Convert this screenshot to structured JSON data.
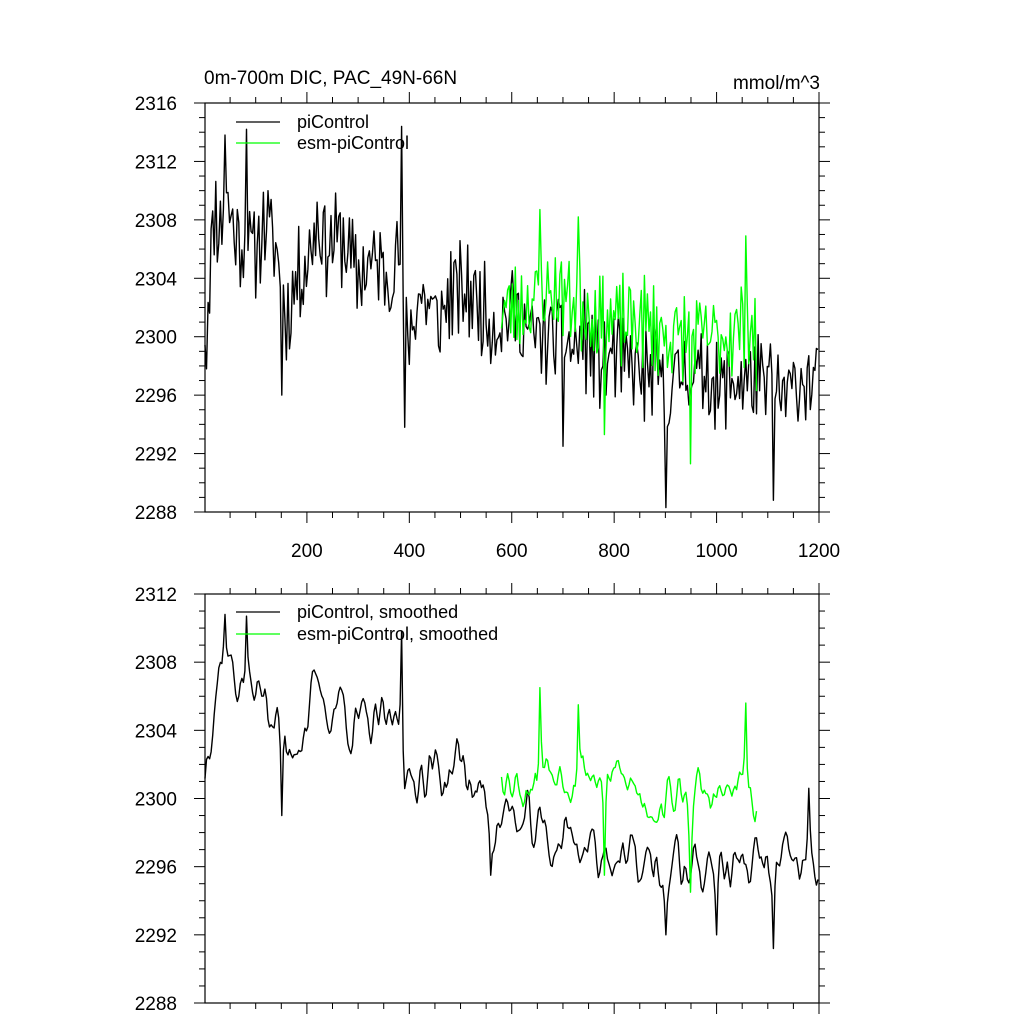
{
  "chart_data": [
    {
      "type": "line",
      "title": "0m-700m DIC, PAC_49N-66N",
      "units": "mmol/m^3",
      "xlim": [
        1,
        1200
      ],
      "ylim": [
        2288,
        2316
      ],
      "xticks": [
        200,
        400,
        600,
        800,
        1000,
        1200
      ],
      "xtick_labels": [
        "200",
        "400",
        "600",
        "800",
        "1000",
        "1200"
      ],
      "yticks": [
        2288,
        2292,
        2296,
        2300,
        2304,
        2308,
        2312,
        2316
      ],
      "ytick_labels": [
        "2288",
        "2292",
        "2296",
        "2300",
        "2304",
        "2308",
        "2312",
        "2316"
      ],
      "legend_position": "top-left",
      "series": [
        {
          "name": "piControl",
          "color": "#000000",
          "x_start": 1,
          "x_end": 1200,
          "anchors": [
            [
              1,
              2301
            ],
            [
              10,
              2304
            ],
            [
              20,
              2309
            ],
            [
              30,
              2307
            ],
            [
              40,
              2310
            ],
            [
              60,
              2307
            ],
            [
              80,
              2306
            ],
            [
              100,
              2306
            ],
            [
              120,
              2308
            ],
            [
              140,
              2306
            ],
            [
              160,
              2301
            ],
            [
              180,
              2304
            ],
            [
              200,
              2305
            ],
            [
              220,
              2308
            ],
            [
              240,
              2306
            ],
            [
              260,
              2307
            ],
            [
              280,
              2306
            ],
            [
              300,
              2304
            ],
            [
              320,
              2305
            ],
            [
              340,
              2305
            ],
            [
              360,
              2304
            ],
            [
              380,
              2306
            ],
            [
              400,
              2300
            ],
            [
              420,
              2303
            ],
            [
              440,
              2302
            ],
            [
              460,
              2301
            ],
            [
              480,
              2303
            ],
            [
              500,
              2303
            ],
            [
              520,
              2303
            ],
            [
              540,
              2302
            ],
            [
              560,
              2301
            ],
            [
              580,
              2301
            ],
            [
              600,
              2302
            ],
            [
              620,
              2301
            ],
            [
              640,
              2300
            ],
            [
              660,
              2300
            ],
            [
              680,
              2300
            ],
            [
              700,
              2300
            ],
            [
              720,
              2299
            ],
            [
              740,
              2300
            ],
            [
              760,
              2299
            ],
            [
              780,
              2298
            ],
            [
              800,
              2299
            ],
            [
              820,
              2298
            ],
            [
              840,
              2298
            ],
            [
              860,
              2297
            ],
            [
              880,
              2298
            ],
            [
              900,
              2296
            ],
            [
              920,
              2297
            ],
            [
              940,
              2298
            ],
            [
              960,
              2297
            ],
            [
              980,
              2298
            ],
            [
              1000,
              2296
            ],
            [
              1020,
              2297
            ],
            [
              1040,
              2297
            ],
            [
              1060,
              2297
            ],
            [
              1080,
              2297
            ],
            [
              1100,
              2296
            ],
            [
              1120,
              2296
            ],
            [
              1140,
              2296
            ],
            [
              1160,
              2297
            ],
            [
              1180,
              2297
            ],
            [
              1200,
              2297
            ]
          ],
          "noise": 3.0,
          "seed": 11,
          "extremes": [
            [
              3,
              2297.8
            ],
            [
              40,
              2313.8
            ],
            [
              83,
              2314.2
            ],
            [
              150,
              2296.0
            ],
            [
              390,
              2293.8
            ],
            [
              385,
              2314.4
            ],
            [
              700,
              2292.5
            ],
            [
              900,
              2288.3
            ],
            [
              1110,
              2288.8
            ],
            [
              1105,
              2299.5
            ]
          ]
        },
        {
          "name": "esm-piControl",
          "color": "#00ff00",
          "x_start": 580,
          "x_end": 1080,
          "anchors": [
            [
              580,
              2302
            ],
            [
              620,
              2302
            ],
            [
              660,
              2303
            ],
            [
              700,
              2303
            ],
            [
              740,
              2302
            ],
            [
              780,
              2301
            ],
            [
              820,
              2301
            ],
            [
              860,
              2301
            ],
            [
              900,
              2300
            ],
            [
              940,
              2300
            ],
            [
              980,
              2300
            ],
            [
              1020,
              2300
            ],
            [
              1060,
              2301
            ],
            [
              1080,
              2299
            ]
          ],
          "noise": 2.8,
          "seed": 23,
          "extremes": [
            [
              656,
              2308.7
            ],
            [
              730,
              2308.2
            ],
            [
              780,
              2293.3
            ],
            [
              950,
              2291.3
            ],
            [
              1058,
              2306.9
            ]
          ]
        }
      ]
    },
    {
      "type": "line",
      "title": "",
      "units": "",
      "xlim": [
        1,
        1200
      ],
      "ylim": [
        2288,
        2312
      ],
      "xticks": [
        200,
        400,
        600,
        800,
        1000,
        1200
      ],
      "xtick_labels": [],
      "yticks": [
        2288,
        2292,
        2296,
        2300,
        2304,
        2308,
        2312
      ],
      "ytick_labels": [
        "2288",
        "2292",
        "2296",
        "2300",
        "2304",
        "2308",
        "2312"
      ],
      "legend_position": "top-left",
      "series": [
        {
          "name": "piControl, smoothed",
          "color": "#000000",
          "x_start": 1,
          "x_end": 1200,
          "anchors": [
            [
              1,
              2302
            ],
            [
              20,
              2307
            ],
            [
              40,
              2309
            ],
            [
              60,
              2307
            ],
            [
              80,
              2307
            ],
            [
              100,
              2306
            ],
            [
              120,
              2306
            ],
            [
              140,
              2305
            ],
            [
              160,
              2302
            ],
            [
              180,
              2304
            ],
            [
              200,
              2305
            ],
            [
              220,
              2306
            ],
            [
              240,
              2305
            ],
            [
              260,
              2306
            ],
            [
              280,
              2305
            ],
            [
              300,
              2304
            ],
            [
              320,
              2304
            ],
            [
              340,
              2304
            ],
            [
              360,
              2304
            ],
            [
              380,
              2305
            ],
            [
              400,
              2300
            ],
            [
              420,
              2302
            ],
            [
              440,
              2302
            ],
            [
              460,
              2301
            ],
            [
              480,
              2302
            ],
            [
              500,
              2302
            ],
            [
              520,
              2301
            ],
            [
              540,
              2300
            ],
            [
              560,
              2299
            ],
            [
              580,
              2299
            ],
            [
              600,
              2299
            ],
            [
              620,
              2298
            ],
            [
              640,
              2298
            ],
            [
              660,
              2298
            ],
            [
              680,
              2297
            ],
            [
              700,
              2298
            ],
            [
              720,
              2298
            ],
            [
              740,
              2297
            ],
            [
              760,
              2297
            ],
            [
              780,
              2297
            ],
            [
              800,
              2297
            ],
            [
              820,
              2296
            ],
            [
              840,
              2296
            ],
            [
              860,
              2296
            ],
            [
              880,
              2296
            ],
            [
              900,
              2295
            ],
            [
              920,
              2296
            ],
            [
              940,
              2296
            ],
            [
              960,
              2296
            ],
            [
              980,
              2296
            ],
            [
              1000,
              2296
            ],
            [
              1020,
              2296
            ],
            [
              1040,
              2296
            ],
            [
              1060,
              2296
            ],
            [
              1080,
              2296
            ],
            [
              1100,
              2296
            ],
            [
              1120,
              2295
            ],
            [
              1140,
              2296
            ],
            [
              1160,
              2296
            ],
            [
              1180,
              2296
            ],
            [
              1200,
              2296
            ]
          ],
          "noise": 2.2,
          "seed": 37,
          "smooth": true,
          "extremes": [
            [
              40,
              2310.8
            ],
            [
              83,
              2310.7
            ],
            [
              150,
              2299.0
            ],
            [
              385,
              2309.8
            ],
            [
              560,
              2295.5
            ],
            [
              900,
              2292.0
            ],
            [
              1000,
              2292.0
            ],
            [
              1110,
              2291.2
            ],
            [
              1180,
              2300.6
            ]
          ]
        },
        {
          "name": "esm-piControl, smoothed",
          "color": "#00ff00",
          "x_start": 580,
          "x_end": 1080,
          "anchors": [
            [
              580,
              2302
            ],
            [
              620,
              2301
            ],
            [
              660,
              2302
            ],
            [
              700,
              2302
            ],
            [
              740,
              2302
            ],
            [
              780,
              2301
            ],
            [
              820,
              2301
            ],
            [
              860,
              2300
            ],
            [
              900,
              2300
            ],
            [
              940,
              2300
            ],
            [
              980,
              2300
            ],
            [
              1020,
              2300
            ],
            [
              1060,
              2301
            ],
            [
              1080,
              2298
            ]
          ],
          "noise": 2.0,
          "seed": 53,
          "smooth": true,
          "extremes": [
            [
              656,
              2306.5
            ],
            [
              730,
              2305.5
            ],
            [
              780,
              2295.5
            ],
            [
              950,
              2294.5
            ],
            [
              1058,
              2305.6
            ]
          ]
        }
      ]
    }
  ]
}
